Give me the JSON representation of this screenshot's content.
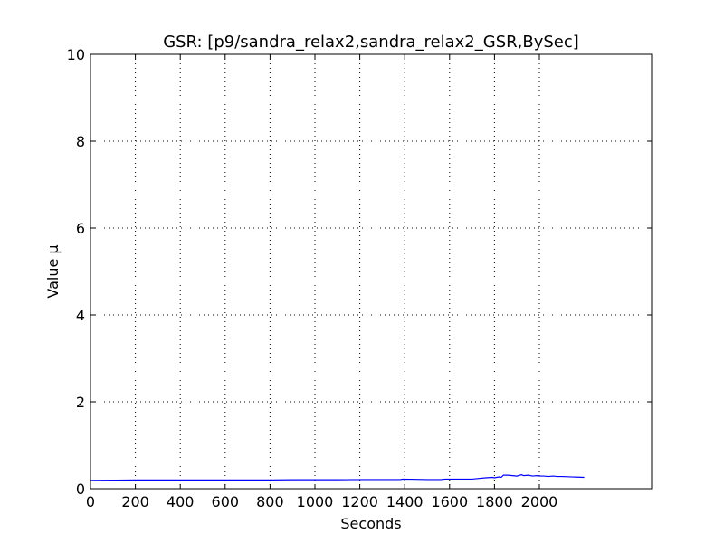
{
  "chart_data": {
    "type": "line",
    "title": "GSR: [p9/sandra_relax2,sandra_relax2_GSR,BySec]",
    "xlabel": "Seconds",
    "ylabel": "Value µ",
    "xlim": [
      0,
      2500
    ],
    "ylim": [
      0,
      10
    ],
    "xticks": [
      0,
      200,
      400,
      600,
      800,
      1000,
      1200,
      1400,
      1600,
      1800,
      2000
    ],
    "yticks": [
      0,
      2,
      4,
      6,
      8,
      10
    ],
    "grid": true,
    "line_color": "#0000ff",
    "series": [
      {
        "x": [
          0,
          100,
          200,
          300,
          400,
          500,
          600,
          700,
          800,
          900,
          1000,
          1100,
          1200,
          1300,
          1380,
          1390,
          1450,
          1500,
          1560,
          1580,
          1600,
          1650,
          1700,
          1720,
          1760,
          1790,
          1800,
          1820,
          1830,
          1840,
          1860,
          1880,
          1900,
          1920,
          1930,
          1950,
          1970,
          1990,
          2000,
          2020,
          2040,
          2060,
          2080,
          2100,
          2150,
          2200
        ],
        "y": [
          0.19,
          0.195,
          0.2,
          0.2,
          0.2,
          0.2,
          0.2,
          0.2,
          0.2,
          0.205,
          0.205,
          0.205,
          0.21,
          0.21,
          0.21,
          0.22,
          0.215,
          0.21,
          0.21,
          0.22,
          0.22,
          0.22,
          0.22,
          0.23,
          0.25,
          0.26,
          0.25,
          0.27,
          0.26,
          0.31,
          0.31,
          0.3,
          0.29,
          0.32,
          0.3,
          0.31,
          0.29,
          0.3,
          0.29,
          0.29,
          0.28,
          0.29,
          0.28,
          0.28,
          0.27,
          0.26
        ]
      }
    ]
  }
}
